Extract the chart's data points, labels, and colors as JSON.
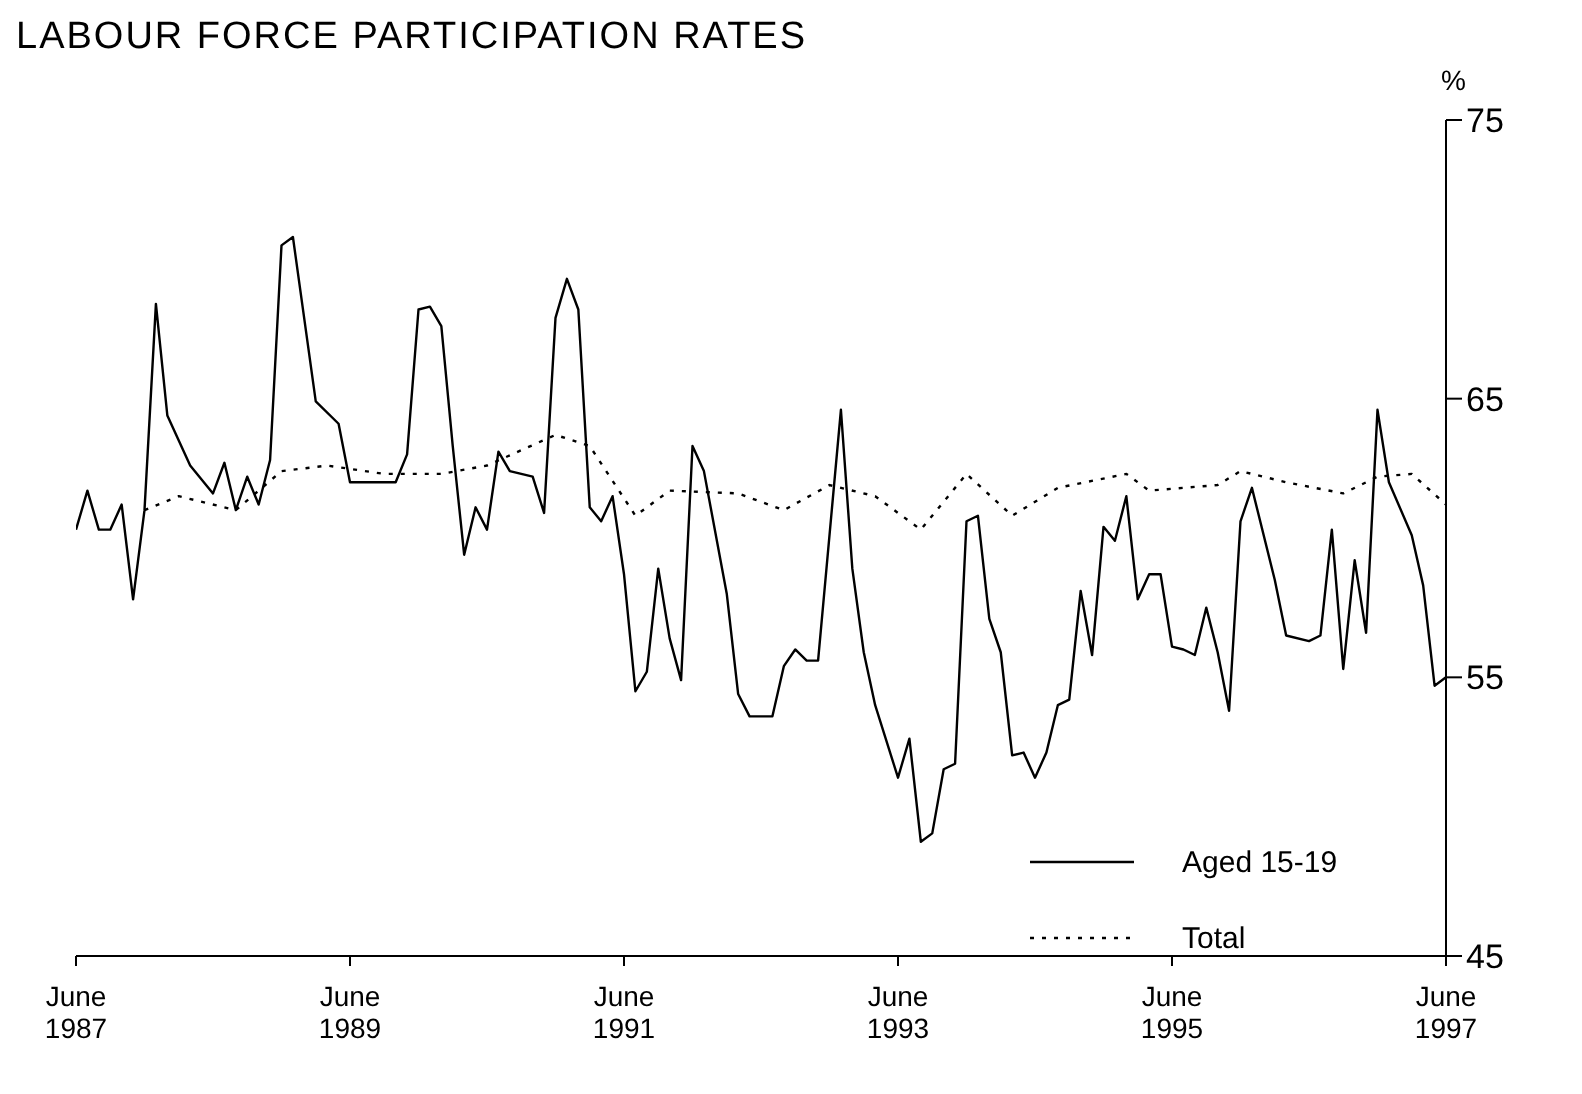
{
  "chart_data": {
    "type": "line",
    "title": "LABOUR FORCE PARTICIPATION RATES",
    "ylabel": "%",
    "xlim": [
      "1987-06",
      "1997-06"
    ],
    "xticks": [
      {
        "value": "1987-06",
        "label": "June\n1987"
      },
      {
        "value": "1989-06",
        "label": "June\n1989"
      },
      {
        "value": "1991-06",
        "label": "June\n1991"
      },
      {
        "value": "1993-06",
        "label": "June\n1993"
      },
      {
        "value": "1995-06",
        "label": "June\n1995"
      },
      {
        "value": "1997-06",
        "label": "June\n1997"
      }
    ],
    "ylim": [
      45,
      75
    ],
    "yticks": [
      45,
      55,
      65,
      75
    ],
    "grid": false,
    "legend": "bottom right",
    "marker": "none",
    "series": [
      {
        "name": "Aged 15-19",
        "color": "#000000",
        "line_style": "solid",
        "x": [
          "1987-06",
          "1987-07",
          "1987-08",
          "1987-09",
          "1987-10",
          "1987-11",
          "1987-12",
          "1988-01",
          "1988-02",
          "1988-04",
          "1988-06",
          "1988-07",
          "1988-08",
          "1988-09",
          "1988-10",
          "1988-11",
          "1988-12",
          "1989-01",
          "1989-03",
          "1989-05",
          "1989-06",
          "1989-07",
          "1989-09",
          "1989-10",
          "1989-11",
          "1989-12",
          "1990-01",
          "1990-02",
          "1990-03",
          "1990-04",
          "1990-05",
          "1990-06",
          "1990-07",
          "1990-08",
          "1990-10",
          "1990-11",
          "1990-12",
          "1991-01",
          "1991-02",
          "1991-03",
          "1991-04",
          "1991-05",
          "1991-06",
          "1991-07",
          "1991-08",
          "1991-09",
          "1991-10",
          "1991-11",
          "1991-12",
          "1992-01",
          "1992-03",
          "1992-04",
          "1992-05",
          "1992-07",
          "1992-08",
          "1992-09",
          "1992-10",
          "1992-11",
          "1993-01",
          "1993-02",
          "1993-03",
          "1993-04",
          "1993-06",
          "1993-07",
          "1993-08",
          "1993-09",
          "1993-10",
          "1993-11",
          "1993-12",
          "1994-01",
          "1994-02",
          "1994-03",
          "1994-04",
          "1994-05",
          "1994-06",
          "1994-07",
          "1994-08",
          "1994-09",
          "1994-10",
          "1994-11",
          "1994-12",
          "1995-01",
          "1995-02",
          "1995-03",
          "1995-04",
          "1995-05",
          "1995-06",
          "1995-07",
          "1995-08",
          "1995-09",
          "1995-10",
          "1995-11",
          "1995-12",
          "1996-01",
          "1996-03",
          "1996-04",
          "1996-06",
          "1996-07",
          "1996-08",
          "1996-09",
          "1996-10",
          "1996-11",
          "1996-12",
          "1997-01",
          "1997-03",
          "1997-04",
          "1997-05",
          "1997-06"
        ],
        "values": [
          60.3,
          61.7,
          60.3,
          60.3,
          61.2,
          57.8,
          61.0,
          68.4,
          64.4,
          62.6,
          61.6,
          62.7,
          61.0,
          62.2,
          61.2,
          62.8,
          70.5,
          70.8,
          64.9,
          64.1,
          62.0,
          62.0,
          62.0,
          62.0,
          63.0,
          68.2,
          68.3,
          67.6,
          63.3,
          59.4,
          61.1,
          60.3,
          63.1,
          62.4,
          62.2,
          60.9,
          67.9,
          69.3,
          68.2,
          61.1,
          60.6,
          61.5,
          58.7,
          54.5,
          55.2,
          58.9,
          56.4,
          54.9,
          63.3,
          62.4,
          58.0,
          54.4,
          53.6,
          53.6,
          55.4,
          56.0,
          55.6,
          55.6,
          64.6,
          58.9,
          55.9,
          54.0,
          51.4,
          52.8,
          49.1,
          49.4,
          51.7,
          51.9,
          60.6,
          60.8,
          57.1,
          55.9,
          52.2,
          52.3,
          51.4,
          52.3,
          54.0,
          54.2,
          58.1,
          55.8,
          60.4,
          59.9,
          61.5,
          57.8,
          58.7,
          58.7,
          56.1,
          56.0,
          55.8,
          57.5,
          55.9,
          53.8,
          60.6,
          61.8,
          58.5,
          56.5,
          56.3,
          56.5,
          60.3,
          55.3,
          59.2,
          56.6,
          64.6,
          62.0,
          60.1,
          58.3,
          54.7,
          55.0
        ]
      },
      {
        "name": "Total",
        "color": "#000000",
        "line_style": "dotted",
        "x": [
          "1987-12",
          "1988-03",
          "1988-08",
          "1988-12",
          "1989-04",
          "1989-09",
          "1990-02",
          "1990-06",
          "1990-12",
          "1991-03",
          "1991-07",
          "1991-10",
          "1992-04",
          "1992-08",
          "1992-12",
          "1993-04",
          "1993-08",
          "1993-12",
          "1994-04",
          "1994-08",
          "1995-02",
          "1995-04",
          "1995-10",
          "1995-12",
          "1996-04",
          "1996-09",
          "1996-12",
          "1997-03",
          "1997-06"
        ],
        "values": [
          61.0,
          61.5,
          61.0,
          62.4,
          62.6,
          62.3,
          62.3,
          62.6,
          63.7,
          63.3,
          60.8,
          61.7,
          61.6,
          61.0,
          61.9,
          61.5,
          60.3,
          62.3,
          60.8,
          61.8,
          62.3,
          61.7,
          61.9,
          62.4,
          62.0,
          61.6,
          62.2,
          62.3,
          61.2
        ]
      }
    ]
  }
}
